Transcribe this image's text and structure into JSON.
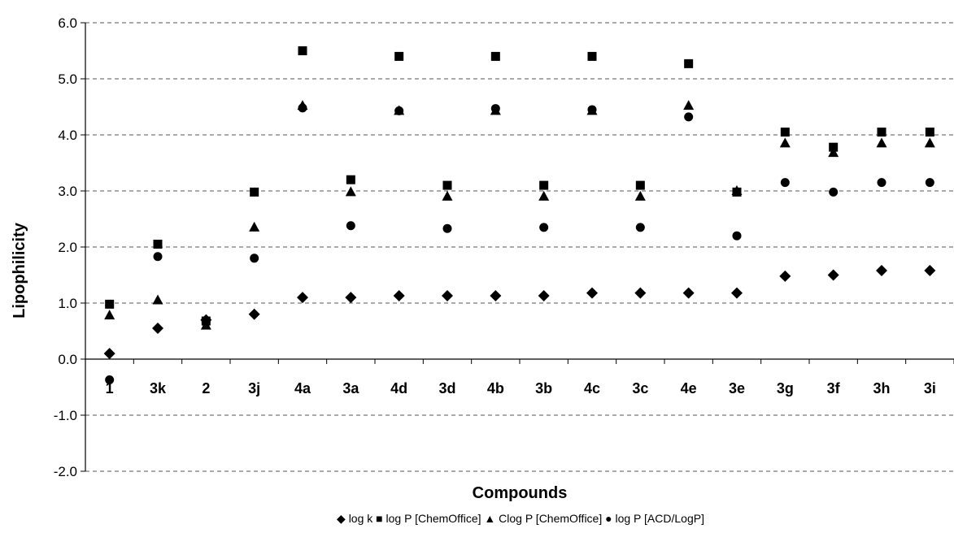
{
  "chart_data": {
    "type": "scatter",
    "title": "",
    "xlabel": "Compounds",
    "ylabel": "Lipophilicity",
    "ylim": [
      -2.0,
      6.0
    ],
    "yticks": [
      "-2.0",
      "-1.0",
      "0.0",
      "1.0",
      "2.0",
      "3.0",
      "4.0",
      "5.0",
      "6.0"
    ],
    "grid": "horizontal dashed",
    "legend_position": "bottom",
    "categories": [
      "1",
      "3k",
      "2",
      "3j",
      "4a",
      "3a",
      "4d",
      "3d",
      "4b",
      "3b",
      "4c",
      "3c",
      "4e",
      "3e",
      "3g",
      "3f",
      "3h",
      "3i"
    ],
    "series": [
      {
        "name": "log k",
        "marker": "diamond",
        "values": [
          0.1,
          0.55,
          0.7,
          0.8,
          1.1,
          1.1,
          1.13,
          1.13,
          1.13,
          1.13,
          1.18,
          1.18,
          1.18,
          1.18,
          1.48,
          1.5,
          1.58,
          1.58
        ]
      },
      {
        "name": "log P [ChemOffice]",
        "marker": "square",
        "values": [
          0.98,
          2.05,
          0.68,
          2.98,
          5.5,
          3.2,
          5.4,
          3.1,
          5.4,
          3.1,
          5.4,
          3.1,
          5.27,
          2.98,
          4.05,
          3.78,
          4.05,
          4.05
        ]
      },
      {
        "name": "Clog P [ChemOffice]",
        "marker": "triangle",
        "values": [
          0.78,
          1.05,
          0.6,
          2.35,
          4.52,
          2.98,
          4.43,
          2.9,
          4.43,
          2.9,
          4.43,
          2.9,
          4.52,
          3.0,
          3.85,
          3.68,
          3.85,
          3.85
        ]
      },
      {
        "name": "log P [ACD/LogP]",
        "marker": "circle",
        "values": [
          -0.37,
          1.83,
          0.68,
          1.8,
          4.48,
          2.38,
          4.43,
          2.33,
          4.47,
          2.35,
          4.45,
          2.35,
          4.32,
          2.2,
          3.15,
          2.98,
          3.15,
          3.15
        ]
      }
    ],
    "legend": [
      {
        "symbol": "◆",
        "label": "log k"
      },
      {
        "symbol": "■",
        "label": "log P [ChemOffice]"
      },
      {
        "symbol": "▲",
        "label": "Clog P [ChemOffice]"
      },
      {
        "symbol": "●",
        "label": "log P [ACD/LogP]"
      }
    ],
    "colors": {
      "marker": "#000000",
      "grid": "#555555",
      "axis": "#000000",
      "background": "#ffffff"
    }
  }
}
